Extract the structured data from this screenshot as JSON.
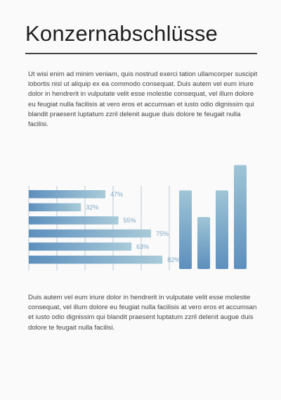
{
  "page": {
    "title": "Konzernabschlüsse",
    "paragraph_1": "Ut wisi enim ad minim veniam, quis nostrud exerci tation ullamcorper suscipit lobortis nisl ut aliquip ex ea commodo consequat. Duis autem vel eum iriure dolor in hendrerit in vulputate velit esse molestie consequat, vel illum dolore eu feugiat nulla facilisis at vero eros et accumsan et iusto odio dignissim qui blandit praesent luptatum zzril delenit augue duis dolore te feugait nulla facilisi.",
    "paragraph_2": "Duis autem vel eum iriure dolor in hendrerit in vulputate velit esse molestie consequat, vel illum dolore eu feugiat nulla facilisis at vero eros et accumsan et iusto odio dignissim qui blandit praesent luptatum zzril delenit augue duis dolore te feugait nulla facilisi."
  },
  "colors": {
    "bar_light": "#a9cbd9",
    "bar_dark": "#5d8fbd",
    "label": "#7aa6c8",
    "grid": "#bcc8d2"
  },
  "chart_data": [
    {
      "type": "bar",
      "orientation": "horizontal",
      "values": [
        47,
        32,
        55,
        75,
        63,
        82
      ],
      "labels": [
        "47%",
        "32%",
        "55%",
        "75%",
        "63%",
        "82%"
      ],
      "xlim": [
        0,
        100
      ],
      "grid": true
    },
    {
      "type": "bar",
      "orientation": "vertical",
      "values": [
        62,
        41,
        62,
        82
      ],
      "grid": false
    }
  ]
}
